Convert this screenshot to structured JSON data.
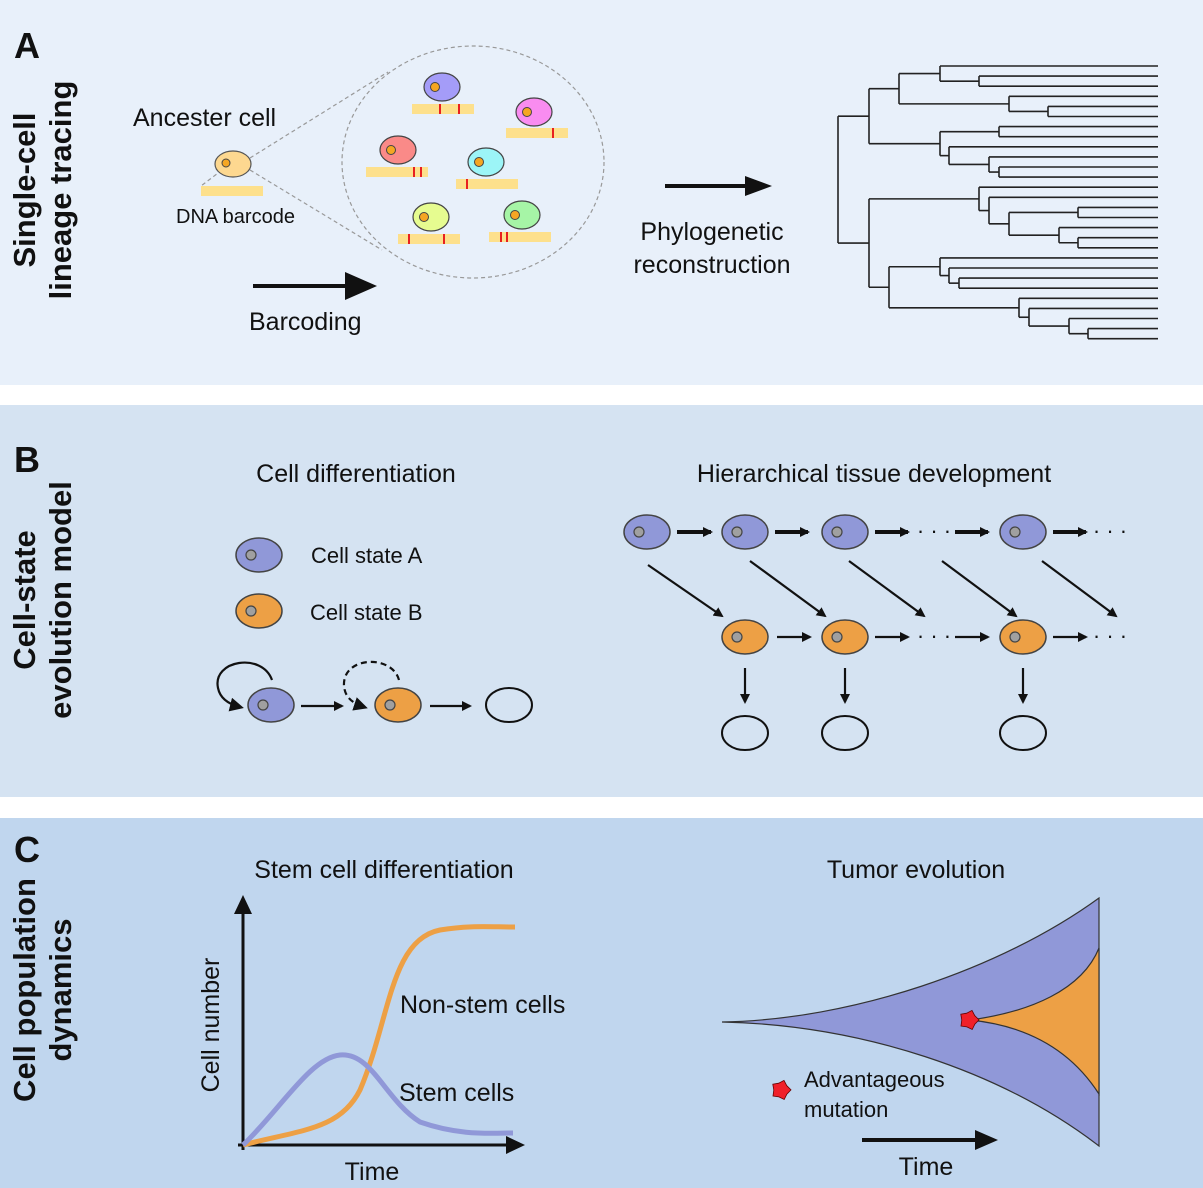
{
  "panels": {
    "a": {
      "letter": "A",
      "side_title": [
        "Single-cell",
        "lineage tracing"
      ],
      "ancestor_label": "Ancester cell",
      "barcode_label": "DNA barcode",
      "barcoding_label": "Barcoding",
      "reconstruction_label": [
        "Phylogenetic",
        "reconstruction"
      ],
      "descendant_colors": [
        "#a49cf8",
        "#f98cf0",
        "#fa8a88",
        "#9cf5f7",
        "#e6fc90",
        "#a6f5a6"
      ]
    },
    "b": {
      "letter": "B",
      "side_title": [
        "Cell-state",
        "evolution model"
      ],
      "left_title": "Cell differentiation",
      "legend": [
        "Cell state A",
        "Cell state B"
      ],
      "right_title": "Hierarchical tissue development",
      "ellipsis": "· · ·"
    },
    "c": {
      "letter": "C",
      "side_title": [
        "Cell population",
        "dynamics"
      ],
      "left_title": "Stem cell differentiation",
      "y_axis": "Cell number",
      "x_axis": "Time",
      "curve_labels": [
        "Non-stem cells",
        "Stem cells"
      ],
      "right_title": "Tumor evolution",
      "mutation_label": [
        "Advantageous",
        "mutation"
      ],
      "time_label": "Time"
    }
  },
  "colors": {
    "panel_a_bg": "#e8f0fa",
    "panel_b_bg": "#d5e3f2",
    "panel_c_bg": "#c0d6ee",
    "cell_state_a": "#9098d8",
    "cell_state_b": "#eda045",
    "mutation": "#f0202a",
    "barcode": "#fde08c"
  }
}
